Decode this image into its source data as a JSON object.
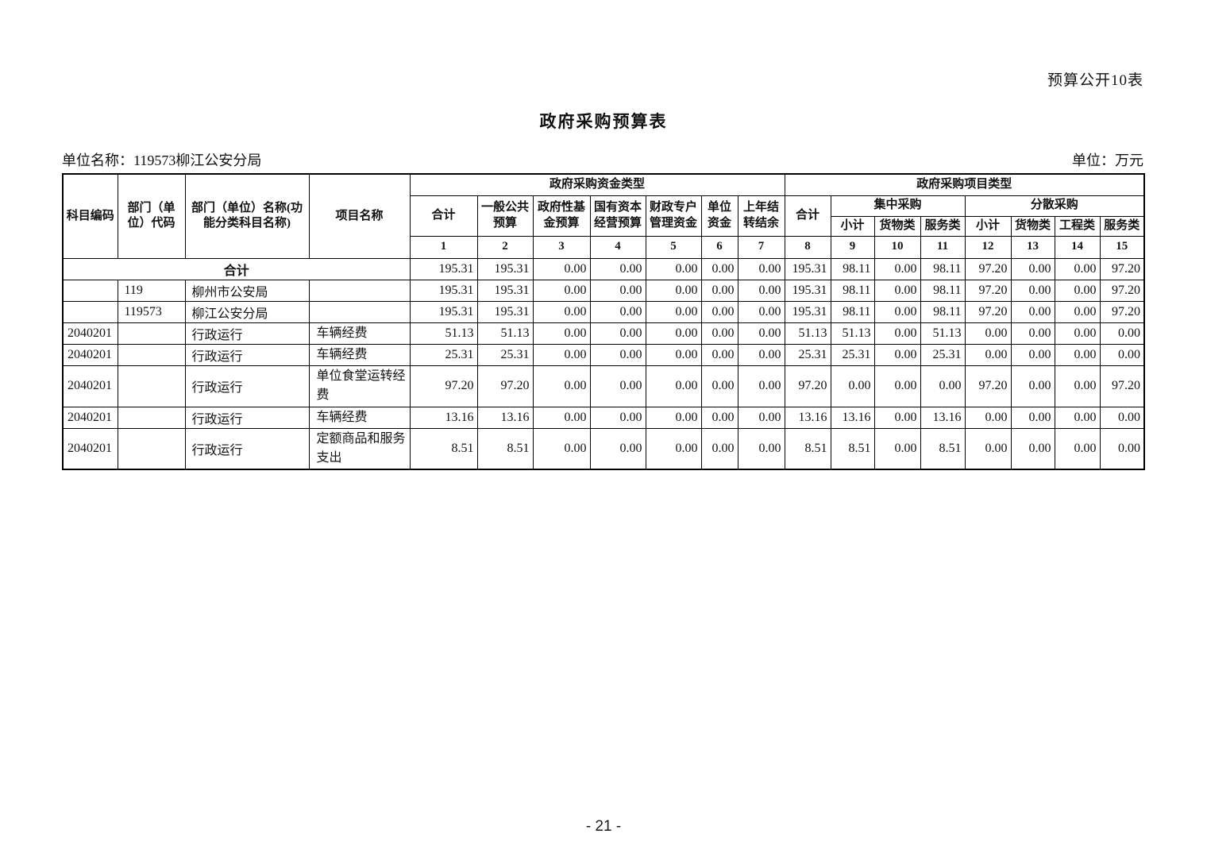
{
  "page": {
    "corner_label": "预算公开10表",
    "title": "政府采购预算表",
    "unit_name": "单位名称：119573柳江公安分局",
    "unit_label": "单位：万元",
    "page_number": "- 21 -"
  },
  "table": {
    "header": {
      "col_subject_code": "科目编码",
      "col_dept_code": "部门（单位）代码",
      "col_dept_name": "部门（单位）名称(功能分类科目名称)",
      "col_project_name": "项目名称",
      "fund_type_group": "政府采购资金类型",
      "project_type_group": "政府采购项目类型",
      "fund_cols": [
        "合计",
        "一般公共预算",
        "政府性基金预算",
        "国有资本经营预算",
        "财政专户管理资金",
        "单位资金",
        "上年结转结余"
      ],
      "project_total": "合计",
      "centralized_group": "集中采购",
      "decentralized_group": "分散采购",
      "centralized_cols": [
        "小计",
        "货物类",
        "服务类"
      ],
      "decentralized_cols": [
        "小计",
        "货物类",
        "工程类",
        "服务类"
      ],
      "col_numbers": [
        "1",
        "2",
        "3",
        "4",
        "5",
        "6",
        "7",
        "8",
        "9",
        "10",
        "11",
        "12",
        "13",
        "14",
        "15"
      ]
    },
    "rows": [
      {
        "kind": "total",
        "label": "合计",
        "values": [
          "195.31",
          "195.31",
          "0.00",
          "0.00",
          "0.00",
          "0.00",
          "0.00",
          "195.31",
          "98.11",
          "0.00",
          "98.11",
          "97.20",
          "0.00",
          "0.00",
          "97.20"
        ]
      },
      {
        "kind": "data",
        "subject_code": "",
        "dept_code": "119",
        "dept_name": "柳州市公安局",
        "project_name": "",
        "values": [
          "195.31",
          "195.31",
          "0.00",
          "0.00",
          "0.00",
          "0.00",
          "0.00",
          "195.31",
          "98.11",
          "0.00",
          "98.11",
          "97.20",
          "0.00",
          "0.00",
          "97.20"
        ]
      },
      {
        "kind": "data",
        "subject_code": "",
        "dept_code": "119573",
        "dept_name": "柳江公安分局",
        "project_name": "",
        "values": [
          "195.31",
          "195.31",
          "0.00",
          "0.00",
          "0.00",
          "0.00",
          "0.00",
          "195.31",
          "98.11",
          "0.00",
          "98.11",
          "97.20",
          "0.00",
          "0.00",
          "97.20"
        ]
      },
      {
        "kind": "data",
        "subject_code": "2040201",
        "dept_code": "",
        "dept_name": "行政运行",
        "project_name": "车辆经费",
        "values": [
          "51.13",
          "51.13",
          "0.00",
          "0.00",
          "0.00",
          "0.00",
          "0.00",
          "51.13",
          "51.13",
          "0.00",
          "51.13",
          "0.00",
          "0.00",
          "0.00",
          "0.00"
        ]
      },
      {
        "kind": "data",
        "subject_code": "2040201",
        "dept_code": "",
        "dept_name": "行政运行",
        "project_name": "车辆经费",
        "values": [
          "25.31",
          "25.31",
          "0.00",
          "0.00",
          "0.00",
          "0.00",
          "0.00",
          "25.31",
          "25.31",
          "0.00",
          "25.31",
          "0.00",
          "0.00",
          "0.00",
          "0.00"
        ]
      },
      {
        "kind": "data",
        "tall": true,
        "subject_code": "2040201",
        "dept_code": "",
        "dept_name": "行政运行",
        "project_name": "单位食堂运转经费",
        "values": [
          "97.20",
          "97.20",
          "0.00",
          "0.00",
          "0.00",
          "0.00",
          "0.00",
          "97.20",
          "0.00",
          "0.00",
          "0.00",
          "97.20",
          "0.00",
          "0.00",
          "97.20"
        ]
      },
      {
        "kind": "data",
        "subject_code": "2040201",
        "dept_code": "",
        "dept_name": "行政运行",
        "project_name": "车辆经费",
        "values": [
          "13.16",
          "13.16",
          "0.00",
          "0.00",
          "0.00",
          "0.00",
          "0.00",
          "13.16",
          "13.16",
          "0.00",
          "13.16",
          "0.00",
          "0.00",
          "0.00",
          "0.00"
        ]
      },
      {
        "kind": "data",
        "tall": true,
        "subject_code": "2040201",
        "dept_code": "",
        "dept_name": "行政运行",
        "project_name": "定额商品和服务支出",
        "values": [
          "8.51",
          "8.51",
          "0.00",
          "0.00",
          "0.00",
          "0.00",
          "0.00",
          "8.51",
          "8.51",
          "0.00",
          "8.51",
          "0.00",
          "0.00",
          "0.00",
          "0.00"
        ]
      }
    ]
  }
}
